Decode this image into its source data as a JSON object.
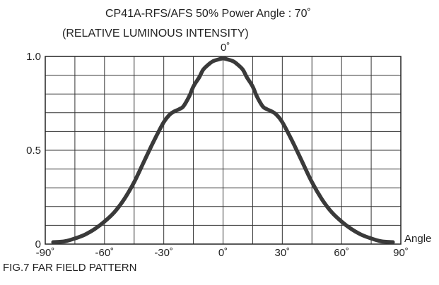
{
  "chart_data": {
    "type": "line",
    "title": "CP41A-RFS/AFS    50% Power Angle : 70˚",
    "ylabel": "(RELATIVE LUMINOUS INTENSITY)",
    "xlabel": "Angle",
    "top_marker": "0˚",
    "caption": "FIG.7  FAR FIELD PATTERN",
    "xlim": [
      -90,
      90
    ],
    "ylim": [
      0,
      1.0
    ],
    "x_ticks": [
      {
        "value": -90,
        "label": "-90˚"
      },
      {
        "value": -60,
        "label": "-60˚"
      },
      {
        "value": -30,
        "label": "-30˚"
      },
      {
        "value": 0,
        "label": "0˚"
      },
      {
        "value": 30,
        "label": "30˚"
      },
      {
        "value": 60,
        "label": "60˚"
      },
      {
        "value": 90,
        "label": "90˚"
      }
    ],
    "y_ticks": [
      {
        "value": 0,
        "label": "0"
      },
      {
        "value": 0.5,
        "label": "0.5"
      },
      {
        "value": 1.0,
        "label": "1.0"
      }
    ],
    "grid": true,
    "x_grid_step": 15,
    "y_grid_step": 0.1,
    "series": [
      {
        "x": [
          -86,
          -80,
          -75,
          -70,
          -65,
          -60,
          -55,
          -50,
          -45,
          -40,
          -35,
          -30,
          -27,
          -25,
          -22,
          -20,
          -17,
          -15,
          -12,
          -10,
          -7,
          -5,
          -2,
          0,
          2,
          5,
          7,
          10,
          12,
          15,
          17,
          20,
          22,
          25,
          27,
          30,
          35,
          40,
          45,
          50,
          55,
          60,
          65,
          70,
          75,
          80,
          86
        ],
        "y": [
          0.01,
          0.015,
          0.03,
          0.05,
          0.08,
          0.12,
          0.17,
          0.24,
          0.33,
          0.44,
          0.55,
          0.65,
          0.69,
          0.705,
          0.72,
          0.735,
          0.79,
          0.84,
          0.89,
          0.93,
          0.96,
          0.975,
          0.985,
          0.99,
          0.985,
          0.975,
          0.96,
          0.93,
          0.89,
          0.84,
          0.79,
          0.735,
          0.72,
          0.705,
          0.69,
          0.65,
          0.55,
          0.44,
          0.33,
          0.24,
          0.17,
          0.12,
          0.08,
          0.05,
          0.03,
          0.015,
          0.01
        ],
        "color": "#3a3a3a"
      }
    ]
  }
}
